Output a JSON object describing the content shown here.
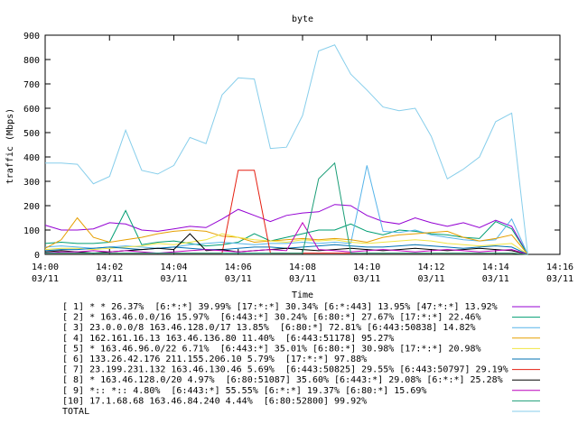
{
  "chart_data": {
    "type": "line",
    "title": "byte",
    "xlabel": "Time",
    "ylabel": "traffic (Mbps)",
    "ylim": [
      0,
      900
    ],
    "yticks": [
      "0",
      "100",
      "200",
      "300",
      "400",
      "500",
      "600",
      "700",
      "800",
      "900"
    ],
    "xticks": [
      {
        "time": "14:00",
        "date": "03/11"
      },
      {
        "time": "14:02",
        "date": "03/11"
      },
      {
        "time": "14:04",
        "date": "03/11"
      },
      {
        "time": "14:06",
        "date": "03/11"
      },
      {
        "time": "14:08",
        "date": "03/11"
      },
      {
        "time": "14:10",
        "date": "03/11"
      },
      {
        "time": "14:12",
        "date": "03/11"
      },
      {
        "time": "14:14",
        "date": "03/11"
      },
      {
        "time": "14:16",
        "date": "03/11"
      }
    ],
    "xlim_minutes": [
      0,
      16
    ],
    "x_minutes": [
      0,
      0.5,
      1,
      1.5,
      2,
      2.5,
      3,
      3.5,
      4,
      4.5,
      5,
      5.5,
      6,
      6.5,
      7,
      7.5,
      8,
      8.5,
      9,
      9.5,
      10,
      10.5,
      11,
      11.5,
      12,
      12.5,
      13,
      13.5,
      14,
      14.5,
      15
    ],
    "grid": false,
    "legend_position": "below",
    "series": [
      {
        "name": "[ 1] * * 26.37%  [6:*:*] 39.99% [17:*:*] 30.34% [6:*:443] 13.95% [47:*:*] 13.92%",
        "color": "#9400d3",
        "values": [
          120,
          100,
          100,
          105,
          130,
          125,
          100,
          95,
          105,
          115,
          110,
          145,
          185,
          160,
          135,
          160,
          170,
          175,
          205,
          200,
          160,
          135,
          125,
          150,
          130,
          115,
          130,
          110,
          140,
          115,
          0
        ]
      },
      {
        "name": "[ 2] * 163.46.0.0/16 15.97%  [6:443:*] 30.24% [6:80:*] 27.67% [17:*:*] 22.46%",
        "color": "#009e73",
        "values": [
          45,
          50,
          45,
          45,
          50,
          180,
          40,
          50,
          55,
          45,
          35,
          40,
          50,
          85,
          55,
          70,
          85,
          100,
          100,
          125,
          95,
          80,
          100,
          95,
          85,
          80,
          70,
          65,
          135,
          105,
          0
        ]
      },
      {
        "name": "[ 3] 23.0.0.0/8 163.46.128.0/17 13.85%  [6:80:*] 72.81% [6:443:50838] 14.82%",
        "color": "#56b4e9",
        "values": [
          30,
          35,
          30,
          25,
          30,
          35,
          30,
          25,
          30,
          40,
          45,
          50,
          45,
          40,
          45,
          45,
          50,
          45,
          50,
          45,
          365,
          95,
          90,
          100,
          80,
          70,
          60,
          55,
          60,
          145,
          0
        ]
      },
      {
        "name": "[ 4] 162.161.16.13 163.46.136.80 11.40%  [6:443:51178] 95.27%",
        "color": "#e69f00",
        "values": [
          25,
          60,
          150,
          70,
          50,
          60,
          70,
          85,
          95,
          100,
          95,
          75,
          70,
          50,
          55,
          60,
          65,
          60,
          65,
          60,
          50,
          70,
          80,
          85,
          90,
          95,
          70,
          55,
          65,
          80,
          0
        ]
      },
      {
        "name": "[ 5] * 163.46.96.0/22 6.71%  [6:443:*] 35.01% [6:80:*] 30.98% [17:*:*] 20.98%",
        "color": "#f0e442",
        "values": [
          20,
          25,
          25,
          20,
          25,
          30,
          35,
          45,
          40,
          50,
          60,
          85,
          70,
          60,
          55,
          50,
          60,
          55,
          60,
          50,
          45,
          50,
          55,
          60,
          55,
          45,
          40,
          35,
          40,
          45,
          0
        ]
      },
      {
        "name": "[ 6] 133.26.42.176 211.155.206.10 5.79%  [17:*:*] 97.88%",
        "color": "#0072b2",
        "values": [
          15,
          20,
          20,
          25,
          30,
          25,
          20,
          25,
          30,
          25,
          20,
          20,
          25,
          30,
          30,
          25,
          30,
          35,
          40,
          35,
          30,
          30,
          35,
          40,
          35,
          30,
          25,
          30,
          35,
          30,
          0
        ]
      },
      {
        "name": "[ 7] 23.199.231.132 163.46.130.46 5.69%  [6:443:50825] 29.55% [6:443:50797] 29.19%",
        "color": "#e51e10",
        "values": [
          5,
          5,
          5,
          5,
          5,
          5,
          5,
          5,
          5,
          5,
          5,
          5,
          345,
          345,
          5,
          5,
          5,
          5,
          5,
          5,
          5,
          5,
          5,
          5,
          5,
          5,
          5,
          5,
          5,
          5,
          0
        ]
      },
      {
        "name": "[ 8] * 163.46.128.0/20 4.97%  [6:80:51087] 35.60% [6:443:*] 29.08% [6:*:*] 25.28%",
        "color": "#000000",
        "values": [
          10,
          15,
          10,
          5,
          10,
          15,
          20,
          25,
          20,
          85,
          15,
          20,
          10,
          15,
          20,
          25,
          20,
          15,
          20,
          25,
          20,
          15,
          20,
          25,
          20,
          15,
          20,
          25,
          20,
          15,
          0
        ]
      },
      {
        "name": "[ 9] *:: *:: 4.80%  [6:443:*] 55.55% [6:*:*] 19.37% [6:80:*] 15.69%",
        "color": "#bb00bb",
        "values": [
          5,
          10,
          10,
          15,
          10,
          15,
          10,
          5,
          10,
          15,
          20,
          15,
          10,
          15,
          20,
          15,
          130,
          20,
          15,
          10,
          15,
          20,
          15,
          10,
          15,
          20,
          15,
          10,
          15,
          20,
          0
        ]
      },
      {
        "name": "[10] 17.1.68.68 163.46.84.240 4.44%  [6:80:52800] 99.92%",
        "color": "#1b9e77",
        "values": [
          5,
          5,
          5,
          5,
          5,
          5,
          5,
          5,
          5,
          5,
          5,
          5,
          5,
          5,
          5,
          5,
          5,
          310,
          375,
          5,
          5,
          5,
          5,
          5,
          5,
          5,
          5,
          5,
          5,
          5,
          0
        ]
      },
      {
        "name": "TOTAL",
        "color": "#87ceeb",
        "values": [
          375,
          375,
          370,
          290,
          320,
          510,
          345,
          330,
          365,
          480,
          455,
          655,
          725,
          720,
          435,
          440,
          570,
          835,
          860,
          740,
          675,
          605,
          590,
          600,
          485,
          310,
          350,
          400,
          545,
          580,
          0
        ]
      }
    ]
  }
}
